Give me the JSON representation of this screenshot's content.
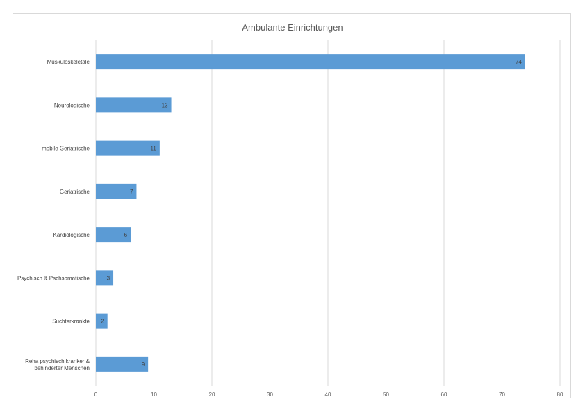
{
  "chart_data": {
    "type": "bar",
    "orientation": "horizontal",
    "title": "Ambulante Einrichtungen",
    "xlabel": "",
    "ylabel": "",
    "categories": [
      [
        "Muskuloskeletale"
      ],
      [
        "Neurologische"
      ],
      [
        "mobile Geriatrische"
      ],
      [
        "Geriatrische"
      ],
      [
        "Kardiologische"
      ],
      [
        "Psychisch & Pschsomatische"
      ],
      [
        "Suchterkrankte"
      ],
      [
        "Reha psychisch kranker &",
        "behinderter Menschen"
      ]
    ],
    "values": [
      74,
      13,
      11,
      7,
      6,
      3,
      2,
      9
    ],
    "xlim": [
      0,
      80
    ],
    "xticks": [
      0,
      10,
      20,
      30,
      40,
      50,
      60,
      70,
      80
    ],
    "grid": true,
    "legend": "none",
    "colors": {
      "bar": "#5b9bd5",
      "grid": "#d9d9d9",
      "text": "#595959"
    }
  }
}
